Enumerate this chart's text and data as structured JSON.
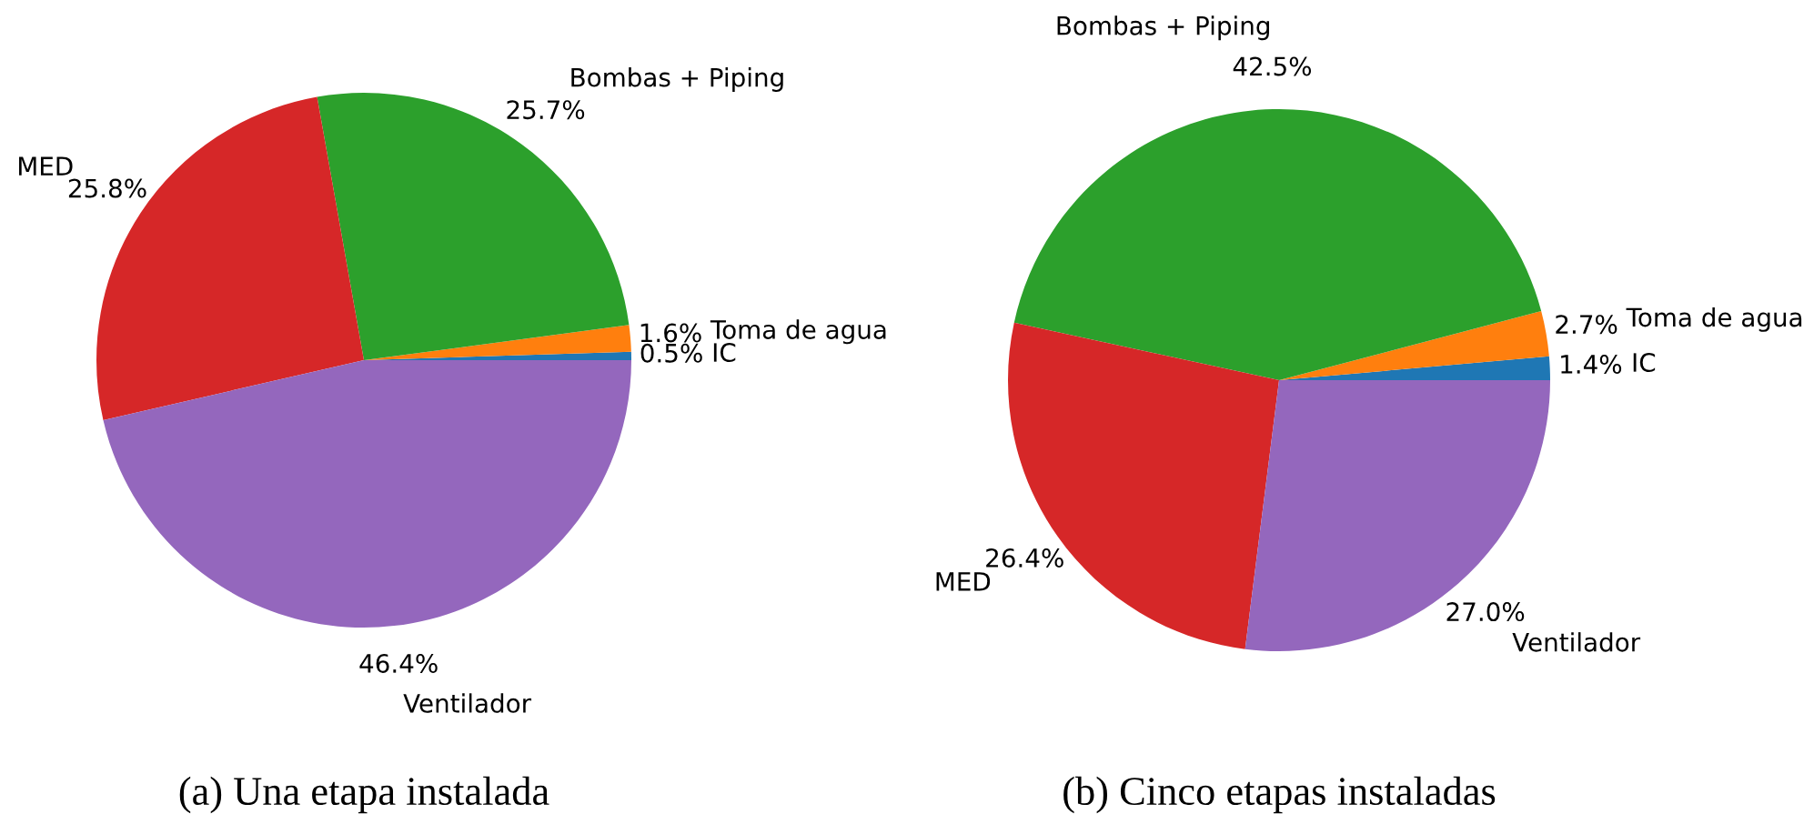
{
  "chart_data": [
    {
      "type": "pie",
      "title": "(a) Una etapa instalada",
      "categories": [
        "IC",
        "Toma de agua",
        "Bombas + Piping",
        "MED",
        "Ventilador"
      ],
      "values": [
        0.5,
        1.6,
        25.7,
        25.8,
        46.4
      ],
      "colors": [
        "#1f77b4",
        "#ff7f0e",
        "#2ca02c",
        "#d62728",
        "#9467bd"
      ],
      "value_labels": [
        "0.5%",
        "1.6%",
        "25.7%",
        "25.8%",
        "46.4%"
      ]
    },
    {
      "type": "pie",
      "title": "(b) Cinco etapas instaladas",
      "categories": [
        "IC",
        "Toma de agua",
        "Bombas + Piping",
        "MED",
        "Ventilador"
      ],
      "values": [
        1.4,
        2.7,
        42.5,
        26.4,
        27.0
      ],
      "colors": [
        "#1f77b4",
        "#ff7f0e",
        "#2ca02c",
        "#d62728",
        "#9467bd"
      ],
      "value_labels": [
        "1.4%",
        "2.7%",
        "42.5%",
        "26.4%",
        "27.0%"
      ]
    }
  ]
}
